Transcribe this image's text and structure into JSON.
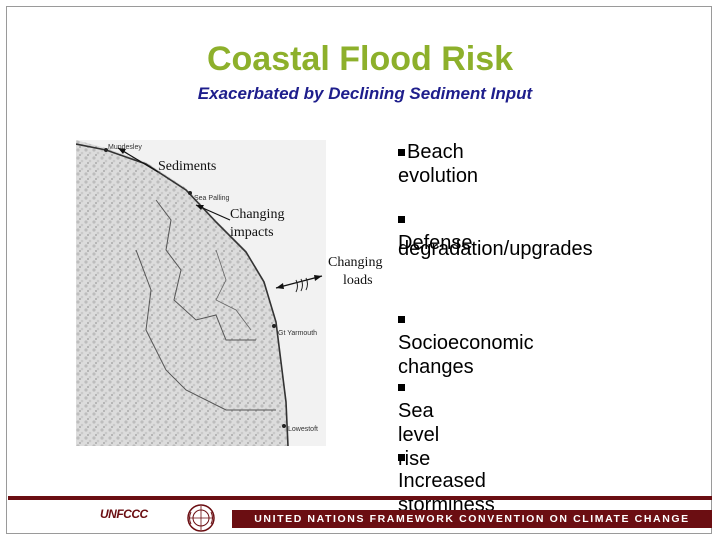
{
  "slide": {
    "title": "Coastal Flood Risk",
    "subtitle": "Exacerbated by Declining Sediment Input"
  },
  "map": {
    "place_labels": [
      "Mundesley",
      "Sea Palling",
      "Gt Yarmouth",
      "Lowestoft"
    ],
    "annotations": {
      "sediments": "Sediments",
      "changing_impacts_1": "Changing",
      "changing_impacts_2": "impacts",
      "changing_loads_1": "Changing",
      "changing_loads_2": "loads"
    }
  },
  "bullets": [
    {
      "text": "Beach evolution"
    },
    {
      "text": "Defense"
    },
    {
      "text": "degradation/upgrades"
    },
    {
      "text": "Socioeconomic changes"
    },
    {
      "text": "Sea level rise"
    },
    {
      "text": "Increased storminess"
    }
  ],
  "footer": {
    "logo_text": "UNFCCC",
    "banner": "UNITED NATIONS FRAMEWORK CONVENTION ON CLIMATE CHANGE"
  },
  "colors": {
    "title": "#8db02b",
    "subtitle": "#1e1e8c",
    "footer": "#6b0e12"
  }
}
